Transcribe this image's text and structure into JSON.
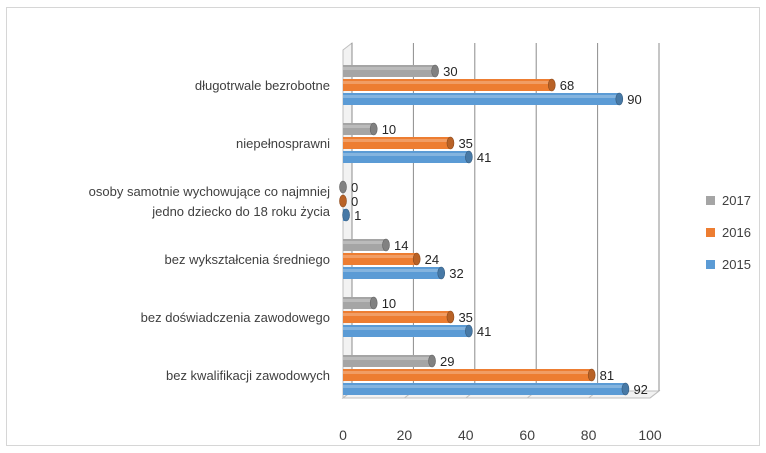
{
  "chart_data": {
    "type": "bar",
    "orientation": "horizontal",
    "style": "3d-cylinder",
    "categories": [
      [
        "bez kwalifikacji zawodowych"
      ],
      [
        "bez doświadczenia zawodowego"
      ],
      [
        "bez wykształcenia średniego"
      ],
      [
        "osoby samotnie wychowujące co najmniej",
        "jedno dziecko do 18 roku życia"
      ],
      [
        "niepełnosprawni"
      ],
      [
        "długotrwale bezrobotne"
      ]
    ],
    "series": [
      {
        "name": "2015",
        "color": "#5b9bd5",
        "values": [
          92,
          41,
          32,
          1,
          41,
          90
        ]
      },
      {
        "name": "2016",
        "color": "#ed7d31",
        "values": [
          81,
          35,
          24,
          0,
          35,
          68
        ]
      },
      {
        "name": "2017",
        "color": "#a5a5a5",
        "values": [
          29,
          10,
          14,
          0,
          10,
          30
        ]
      }
    ],
    "x_ticks": [
      "0",
      "20",
      "40",
      "60",
      "80",
      "100"
    ],
    "xlim": [
      0,
      100
    ],
    "grid": true,
    "legend_position": "right",
    "legend_order": [
      "2017",
      "2016",
      "2015"
    ]
  }
}
